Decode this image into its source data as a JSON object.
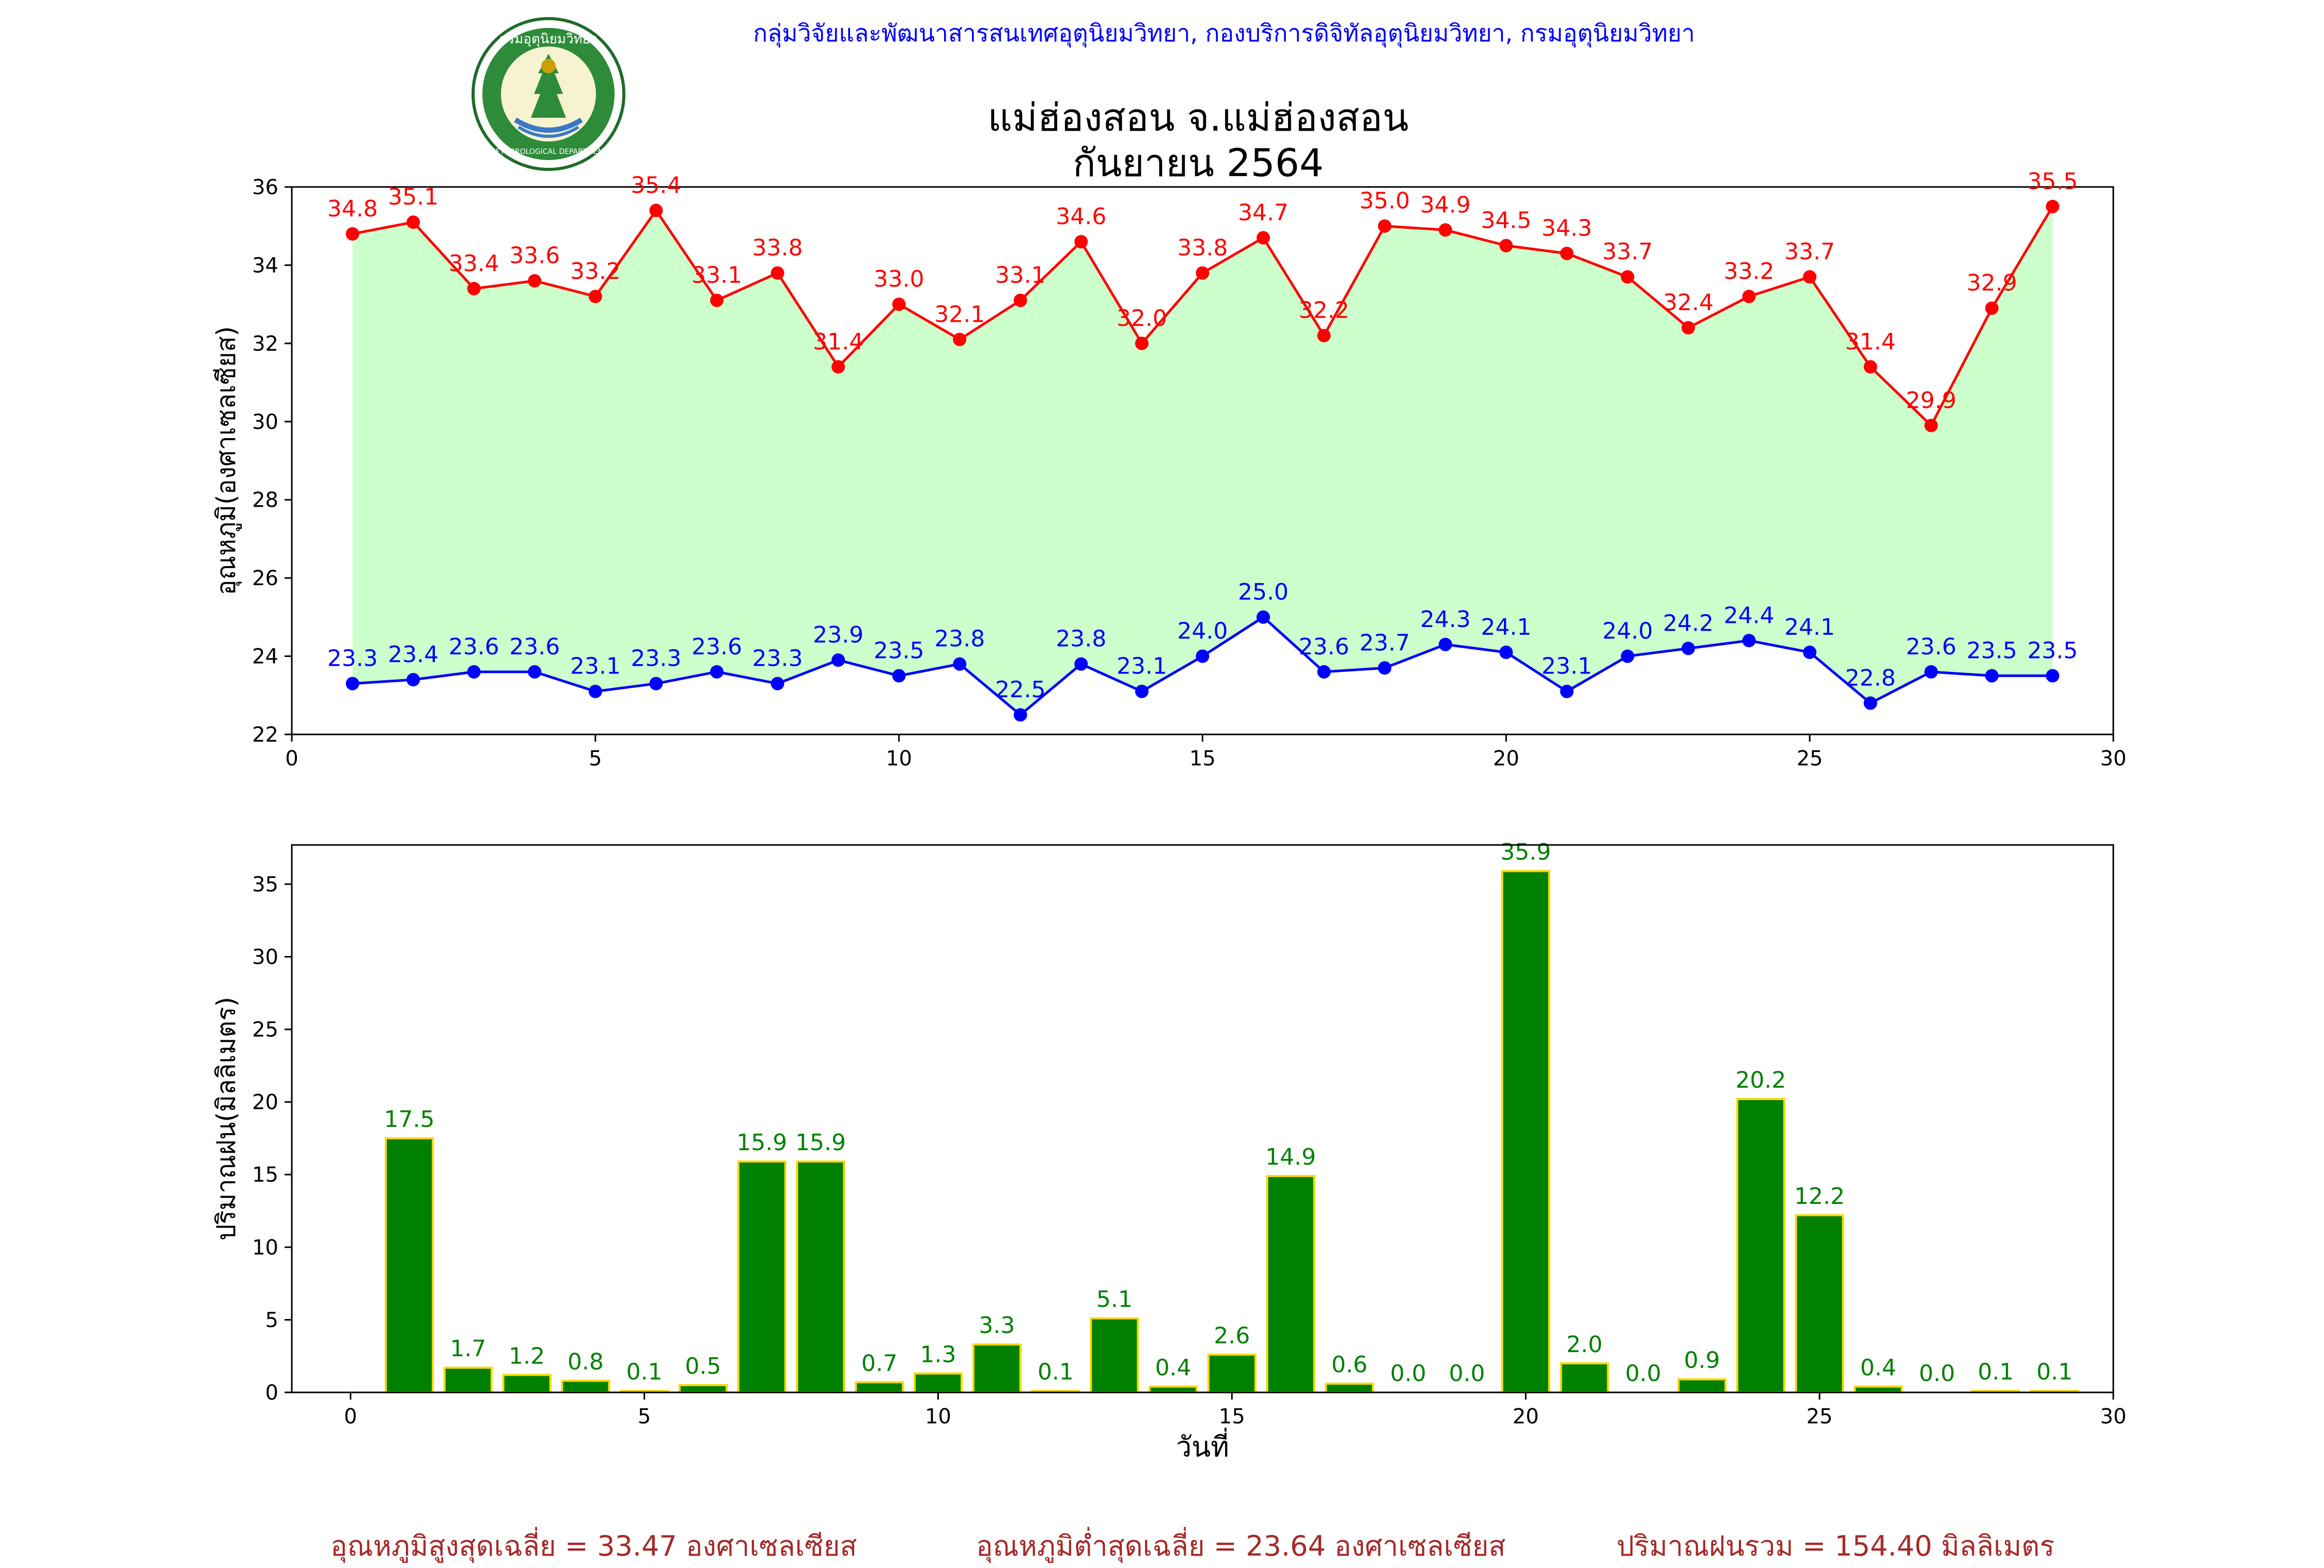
{
  "header": {
    "credit": "กลุ่มวิจัยและพัฒนาสารสนเทศอุตุนิยมวิทยา, กองบริการดิจิทัลอุตุนิยมวิทยา, กรมอุตุนิยมวิทยา",
    "title_line1": "แม่ฮ่องสอน จ.แม่ฮ่องสอน",
    "title_line2": "กันยายน 2564"
  },
  "logo": {
    "icon": "tmd-seal-icon",
    "text_top": "กรมอุตุนิยมวิทยา",
    "text_bottom": "METEOROLOGICAL DEPARTMENT"
  },
  "footer": {
    "avg_max": "อุณหภูมิสูงสุดเฉลี่ย = 33.47 องศาเซลเซียส",
    "avg_min": "อุณหภูมิต่ำสุดเฉลี่ย = 23.64 องศาเซลเซียส",
    "total_rain": "ปริมาณฝนรวม = 154.40 มิลลิเมตร"
  },
  "chart_data": [
    {
      "type": "line",
      "ylabel": "อุณหภูมิ(องศาเซลเซียส)",
      "xlim": [
        0,
        30
      ],
      "ylim": [
        22,
        36
      ],
      "xticks": [
        0,
        5,
        10,
        15,
        20,
        25,
        30
      ],
      "yticks": [
        22,
        24,
        26,
        28,
        30,
        32,
        34,
        36
      ],
      "fill_between": "#ccffcc",
      "x": [
        1,
        2,
        3,
        4,
        5,
        6,
        7,
        8,
        9,
        10,
        11,
        12,
        13,
        14,
        15,
        16,
        17,
        18,
        19,
        20,
        21,
        22,
        23,
        24,
        25,
        26,
        27,
        28,
        29
      ],
      "series": [
        {
          "color": "#ff0000",
          "values": [
            34.8,
            35.1,
            33.4,
            33.6,
            33.2,
            35.4,
            33.1,
            33.8,
            31.4,
            33.0,
            32.1,
            33.1,
            34.6,
            32.0,
            33.8,
            34.7,
            32.2,
            35.0,
            34.9,
            34.5,
            34.3,
            33.7,
            32.4,
            33.2,
            33.7,
            31.4,
            29.9,
            32.9,
            35.5
          ]
        },
        {
          "color": "#0000ff",
          "values": [
            23.3,
            23.4,
            23.6,
            23.6,
            23.1,
            23.3,
            23.6,
            23.3,
            23.9,
            23.5,
            23.8,
            22.5,
            23.8,
            23.1,
            24.0,
            25.0,
            23.6,
            23.7,
            24.3,
            24.1,
            23.1,
            24.0,
            24.2,
            24.4,
            24.1,
            22.8,
            23.6,
            23.5,
            23.5
          ]
        }
      ]
    },
    {
      "type": "bar",
      "xlabel": "วันที่",
      "ylabel": "ปริมาณฝน(มิลลิเมตร)",
      "xlim": [
        -1,
        30
      ],
      "ylim": [
        0,
        37.7
      ],
      "xticks": [
        0,
        5,
        10,
        15,
        20,
        25,
        30
      ],
      "yticks": [
        0,
        5,
        10,
        15,
        20,
        25,
        30,
        35
      ],
      "bar_color": "#008000",
      "edge_color": "#ffd700",
      "label_color": "#008000",
      "x": [
        1,
        2,
        3,
        4,
        5,
        6,
        7,
        8,
        9,
        10,
        11,
        12,
        13,
        14,
        15,
        16,
        17,
        18,
        19,
        20,
        21,
        22,
        23,
        24,
        25,
        26,
        27,
        28,
        29
      ],
      "values": [
        17.5,
        1.7,
        1.2,
        0.8,
        0.1,
        0.5,
        15.9,
        15.9,
        0.7,
        1.3,
        3.3,
        0.1,
        5.1,
        0.4,
        2.6,
        14.9,
        0.6,
        0.0,
        0.0,
        35.9,
        2.0,
        0.0,
        0.9,
        20.2,
        12.2,
        0.4,
        0.0,
        0.1,
        0.1
      ]
    }
  ]
}
